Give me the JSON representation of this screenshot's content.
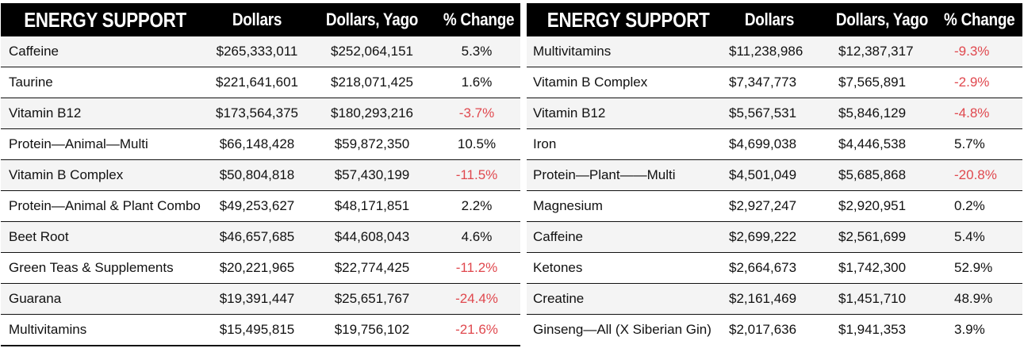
{
  "colors": {
    "header_bg": "#000000",
    "header_text": "#ffffff",
    "negative": "#e0484e",
    "row_alt": "#f4f4f4"
  },
  "left_table": {
    "headers": [
      "ENERGY SUPPORT",
      "Dollars",
      "Dollars, Yago",
      "% Change"
    ],
    "rows": [
      {
        "name": "Caffeine",
        "dollars": "$265,333,011",
        "yago": "$252,064,151",
        "change": "5.3%"
      },
      {
        "name": "Taurine",
        "dollars": "$221,641,601",
        "yago": "$218,071,425",
        "change": "1.6%"
      },
      {
        "name": "Vitamin B12",
        "dollars": "$173,564,375",
        "yago": "$180,293,216",
        "change": "-3.7%"
      },
      {
        "name": "Protein—Animal—Multi",
        "dollars": "$66,148,428",
        "yago": "$59,872,350",
        "change": "10.5%"
      },
      {
        "name": "Vitamin B Complex",
        "dollars": "$50,804,818",
        "yago": "$57,430,199",
        "change": "-11.5%"
      },
      {
        "name": "Protein—Animal & Plant Combo",
        "dollars": "$49,253,627",
        "yago": "$48,171,851",
        "change": "2.2%"
      },
      {
        "name": "Beet Root",
        "dollars": "$46,657,685",
        "yago": "$44,608,043",
        "change": "4.6%"
      },
      {
        "name": "Green Teas & Supplements",
        "dollars": "$20,221,965",
        "yago": "$22,774,425",
        "change": "-11.2%"
      },
      {
        "name": "Guarana",
        "dollars": "$19,391,447",
        "yago": "$25,651,767",
        "change": "-24.4%"
      },
      {
        "name": "Multivitamins",
        "dollars": "$15,495,815",
        "yago": "$19,756,102",
        "change": "-21.6%"
      }
    ]
  },
  "right_table": {
    "headers": [
      "ENERGY SUPPORT",
      "Dollars",
      "Dollars, Yago",
      "% Change"
    ],
    "rows": [
      {
        "name": "Multivitamins",
        "dollars": "$11,238,986",
        "yago": "$12,387,317",
        "change": "-9.3%"
      },
      {
        "name": "Vitamin B Complex",
        "dollars": "$7,347,773",
        "yago": "$7,565,891",
        "change": "-2.9%"
      },
      {
        "name": "Vitamin B12",
        "dollars": "$5,567,531",
        "yago": "$5,846,129",
        "change": "-4.8%"
      },
      {
        "name": "Iron",
        "dollars": "$4,699,038",
        "yago": "$4,446,538",
        "change": "5.7%"
      },
      {
        "name": "Protein—Plant——Multi",
        "dollars": "$4,501,049",
        "yago": "$5,685,868",
        "change": "-20.8%"
      },
      {
        "name": "Magnesium",
        "dollars": "$2,927,247",
        "yago": "$2,920,951",
        "change": "0.2%"
      },
      {
        "name": "Caffeine",
        "dollars": "$2,699,222",
        "yago": "$2,561,699",
        "change": "5.4%"
      },
      {
        "name": "Ketones",
        "dollars": "$2,664,673",
        "yago": "$1,742,300",
        "change": "52.9%"
      },
      {
        "name": "Creatine",
        "dollars": "$2,161,469",
        "yago": "$1,451,710",
        "change": "48.9%"
      },
      {
        "name": "Ginseng—All (X Siberian Gin)",
        "dollars": "$2,017,636",
        "yago": "$1,941,353",
        "change": "3.9%"
      }
    ]
  }
}
